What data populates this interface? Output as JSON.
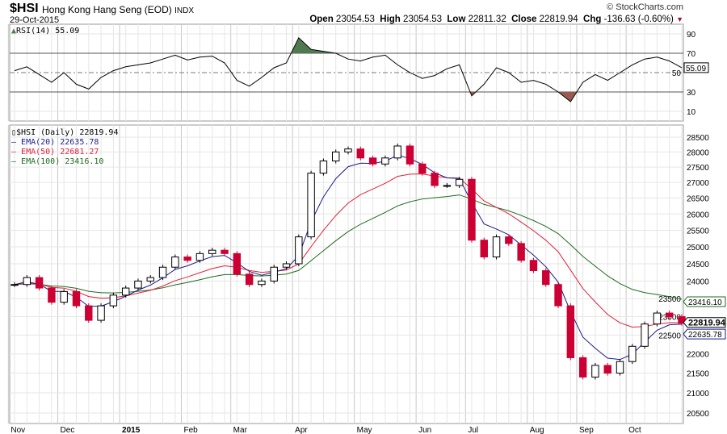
{
  "header": {
    "symbol": "$HSI",
    "name": "Hong Kong Hang Seng (EOD)",
    "exchange": "INDX",
    "date": "29-Oct-2015",
    "watermark": "© StockCharts.com",
    "open_label": "Open",
    "open": "23054.53",
    "high_label": "High",
    "high": "23054.53",
    "low_label": "Low",
    "low": "22811.32",
    "close_label": "Close",
    "close": "22819.94",
    "chg_label": "Chg",
    "chg": "-136.63 (-0.60%)"
  },
  "colors": {
    "up": "#000000",
    "down": "#cc0033",
    "ema20": "#1a1a8c",
    "ema50": "#e0203a",
    "ema100": "#1e6b1e",
    "rsi_over": "#4f7a4f",
    "rsi_under": "#9a5a50"
  },
  "chart_data": [
    {
      "type": "line",
      "title": "RSI(14) 55.09",
      "legend": "RSI(14) 55.09",
      "ylim": [
        0,
        100
      ],
      "yticks": [
        10,
        30,
        50,
        70,
        90
      ],
      "last_label": "55.09",
      "values": [
        52,
        56,
        48,
        40,
        50,
        38,
        33,
        45,
        52,
        56,
        58,
        60,
        64,
        68,
        63,
        66,
        67,
        60,
        42,
        36,
        45,
        55,
        60,
        86,
        74,
        72,
        70,
        64,
        62,
        66,
        68,
        58,
        50,
        44,
        47,
        54,
        58,
        26,
        38,
        55,
        50,
        40,
        42,
        38,
        30,
        20,
        40,
        48,
        42,
        50,
        58,
        64,
        66,
        62,
        55.09
      ]
    },
    {
      "type": "candlestick",
      "title": "$HSI (Daily) 22819.94",
      "scale": "log",
      "ylim": [
        20300,
        28900
      ],
      "yticks": [
        20500,
        21000,
        21500,
        22000,
        22500,
        23000,
        23500,
        24000,
        24500,
        25000,
        25500,
        26000,
        26500,
        27000,
        27500,
        28000,
        28500
      ],
      "xticks": [
        "Nov",
        "Dec",
        "2015",
        "Feb",
        "Mar",
        "Apr",
        "May",
        "Jun",
        "Jul",
        "Aug",
        "Sep",
        "Oct"
      ],
      "xtick_index": [
        0,
        4,
        9,
        14,
        18,
        23,
        28,
        33,
        37,
        42,
        46,
        50
      ],
      "closes": [
        23900,
        24100,
        23800,
        23400,
        23700,
        23300,
        22900,
        23300,
        23600,
        23800,
        24000,
        24100,
        24400,
        24700,
        24600,
        24800,
        24900,
        24800,
        24200,
        23900,
        24000,
        24400,
        24500,
        25300,
        27300,
        27700,
        28000,
        28100,
        27800,
        27600,
        27800,
        28200,
        27600,
        27300,
        26900,
        26900,
        27100,
        25200,
        24700,
        25300,
        25100,
        24600,
        24300,
        23900,
        23300,
        21900,
        21400,
        21700,
        21500,
        21800,
        22200,
        22800,
        23100,
        23000,
        22819.94
      ],
      "series_legend": [
        {
          "name": "$HSI (Daily)",
          "value": "22819.94"
        },
        {
          "name": "EMA(20)",
          "value": "22635.78"
        },
        {
          "name": "EMA(50)",
          "value": "22681.27"
        },
        {
          "name": "EMA(100)",
          "value": "23416.10"
        }
      ],
      "value_tags": {
        "ema100": "23416.10",
        "close": "22819.94",
        "ema20": "22635.78"
      }
    }
  ]
}
